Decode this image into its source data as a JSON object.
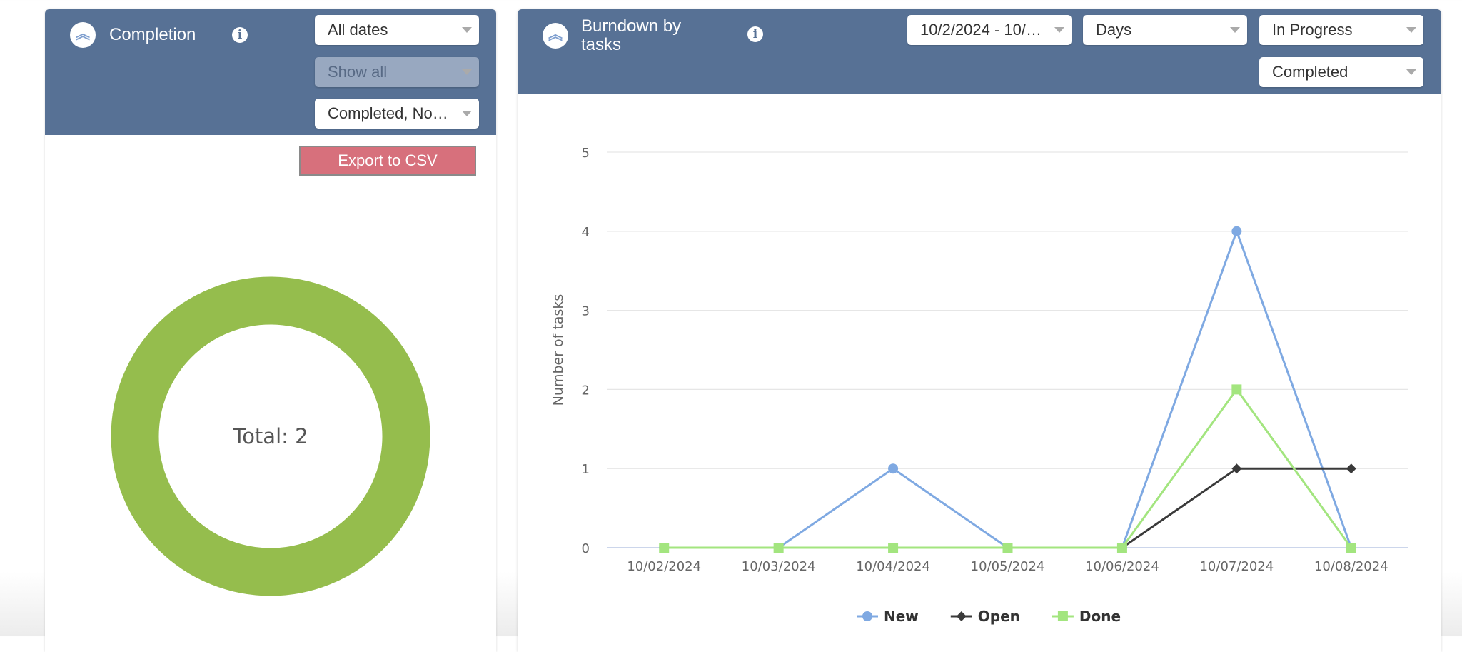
{
  "completion": {
    "title": "Completion",
    "collapse_icon": "double-chevron-up-icon",
    "info_icon": "info-icon",
    "filters": [
      "All dates",
      "Show all",
      "Completed, No…"
    ],
    "export_label": "Export to CSV",
    "donut": {
      "total_label": "Total: 2",
      "color": "#95bd4d"
    }
  },
  "burndown": {
    "title": "Burndown by tasks",
    "collapse_icon": "double-chevron-up-icon",
    "info_icon": "info-icon",
    "filters": [
      "10/2/2024 - 10/…",
      "Days",
      "In Progress",
      "Completed"
    ]
  },
  "chart_data": {
    "type": "line",
    "ylabel": "Number of tasks",
    "ylim": [
      0,
      5
    ],
    "yticks": [
      "0",
      "1",
      "2",
      "3",
      "4",
      "5"
    ],
    "grid": true,
    "legend": "bottom",
    "categories": [
      "10/02/2024",
      "10/03/2024",
      "10/04/2024",
      "10/05/2024",
      "10/06/2024",
      "10/07/2024",
      "10/08/2024"
    ],
    "series": [
      {
        "name": "New",
        "values": [
          0,
          0,
          1,
          0,
          0,
          4,
          0
        ],
        "color": "#7fa9e2",
        "marker": "circle"
      },
      {
        "name": "Open",
        "values": [
          0,
          0,
          0,
          0,
          0,
          1,
          1
        ],
        "color": "#3a3a3a",
        "marker": "diamond"
      },
      {
        "name": "Done",
        "values": [
          0,
          0,
          0,
          0,
          0,
          2,
          0
        ],
        "color": "#a3e57f",
        "marker": "square"
      }
    ]
  }
}
